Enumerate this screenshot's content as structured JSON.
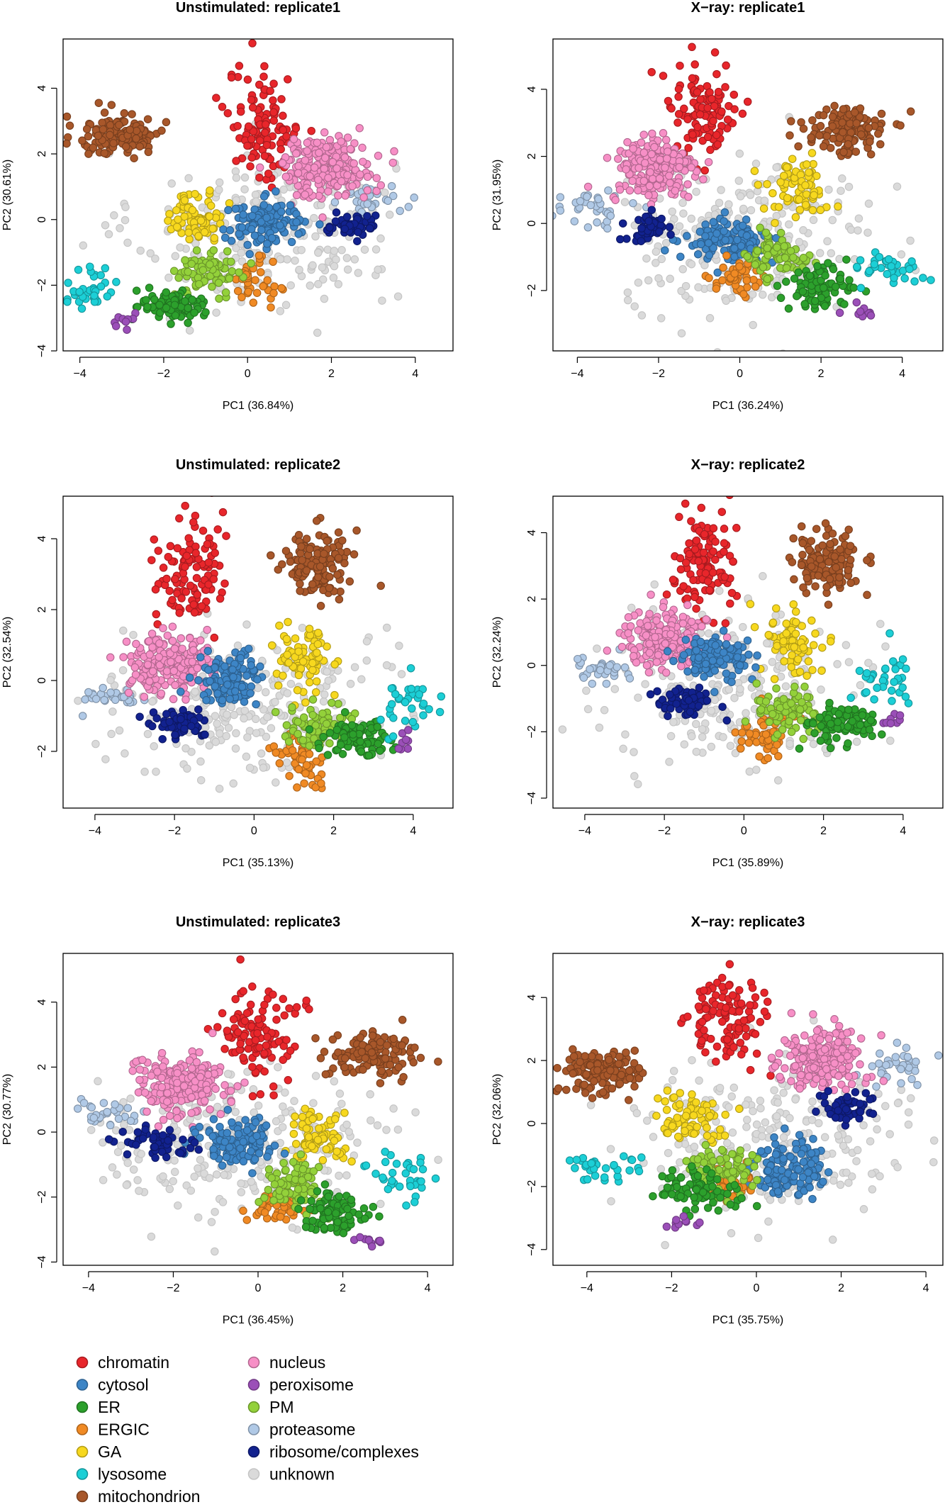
{
  "legend": {
    "placement": "bottom-left",
    "entries": [
      {
        "name": "chromatin",
        "color": "#e8262b"
      },
      {
        "name": "cytosol",
        "color": "#3d85c6"
      },
      {
        "name": "ER",
        "color": "#2ca02c"
      },
      {
        "name": "ERGIC",
        "color": "#f08a24"
      },
      {
        "name": "GA",
        "color": "#f7d81e"
      },
      {
        "name": "lysosome",
        "color": "#1ccfd6"
      },
      {
        "name": "mitochondrion",
        "color": "#a8572a"
      },
      {
        "name": "nucleus",
        "color": "#f78fc6"
      },
      {
        "name": "peroxisome",
        "color": "#9b4fb8"
      },
      {
        "name": "PM",
        "color": "#93d13a"
      },
      {
        "name": "proteasome",
        "color": "#b0c9e6"
      },
      {
        "name": "ribosome/complexes",
        "color": "#12228f"
      },
      {
        "name": "unknown",
        "color": "#dadada"
      }
    ]
  },
  "chart_data": [
    {
      "type": "scatter",
      "title": "Unstimulated: replicate1",
      "xlabel": "PC1 (36.84%)",
      "ylabel": "PC2 (30.61%)",
      "xlim": [
        -4.4,
        4.9
      ],
      "ylim": [
        -4.0,
        5.5
      ],
      "xticks": [
        -4,
        -2,
        0,
        2,
        4
      ],
      "yticks": [
        -4,
        -2,
        0,
        2,
        4
      ],
      "clusters": [
        {
          "class": "unknown",
          "cx": 0.4,
          "cy": -0.3,
          "sx": 1.8,
          "sy": 1.4,
          "n": 260
        },
        {
          "class": "proteasome",
          "cx": 3.0,
          "cy": 0.6,
          "sx": 0.45,
          "sy": 0.25,
          "n": 30
        },
        {
          "class": "mitochondrion",
          "cx": -3.0,
          "cy": 2.6,
          "sx": 0.6,
          "sy": 0.4,
          "n": 130
        },
        {
          "class": "chromatin",
          "cx": 0.4,
          "cy": 2.8,
          "sx": 0.5,
          "sy": 1.0,
          "n": 110
        },
        {
          "class": "nucleus",
          "cx": 1.9,
          "cy": 1.6,
          "sx": 0.65,
          "sy": 0.55,
          "n": 200
        },
        {
          "class": "GA",
          "cx": -1.2,
          "cy": 0.1,
          "sx": 0.4,
          "sy": 0.45,
          "n": 75
        },
        {
          "class": "cytosol",
          "cx": 0.5,
          "cy": -0.1,
          "sx": 0.55,
          "sy": 0.4,
          "n": 120
        },
        {
          "class": "ribosome/complexes",
          "cx": 2.5,
          "cy": -0.2,
          "sx": 0.35,
          "sy": 0.2,
          "n": 55
        },
        {
          "class": "ERGIC",
          "cx": 0.1,
          "cy": -1.9,
          "sx": 0.3,
          "sy": 0.4,
          "n": 40
        },
        {
          "class": "PM",
          "cx": -0.9,
          "cy": -1.6,
          "sx": 0.45,
          "sy": 0.35,
          "n": 75
        },
        {
          "class": "ER",
          "cx": -1.8,
          "cy": -2.6,
          "sx": 0.45,
          "sy": 0.3,
          "n": 90
        },
        {
          "class": "lysosome",
          "cx": -3.7,
          "cy": -2.1,
          "sx": 0.35,
          "sy": 0.3,
          "n": 35
        },
        {
          "class": "peroxisome",
          "cx": -2.9,
          "cy": -3.1,
          "sx": 0.2,
          "sy": 0.2,
          "n": 10
        }
      ]
    },
    {
      "type": "scatter",
      "title": "X−ray: replicate1",
      "xlabel": "PC1 (36.24%)",
      "ylabel": "PC2 (31.95%)",
      "xlim": [
        -4.6,
        5.0
      ],
      "ylim": [
        -3.8,
        5.5
      ],
      "xticks": [
        -4,
        -2,
        0,
        2,
        4
      ],
      "yticks": [
        -2,
        0,
        2,
        4
      ],
      "clusters": [
        {
          "class": "unknown",
          "cx": 0.2,
          "cy": -0.5,
          "sx": 1.8,
          "sy": 1.3,
          "n": 260
        },
        {
          "class": "proteasome",
          "cx": -3.6,
          "cy": 0.4,
          "sx": 0.5,
          "sy": 0.25,
          "n": 35
        },
        {
          "class": "mitochondrion",
          "cx": 2.6,
          "cy": 2.8,
          "sx": 0.6,
          "sy": 0.45,
          "n": 130
        },
        {
          "class": "chromatin",
          "cx": -0.9,
          "cy": 3.3,
          "sx": 0.55,
          "sy": 0.9,
          "n": 110
        },
        {
          "class": "nucleus",
          "cx": -2.1,
          "cy": 1.6,
          "sx": 0.6,
          "sy": 0.6,
          "n": 200
        },
        {
          "class": "GA",
          "cx": 1.4,
          "cy": 1.0,
          "sx": 0.45,
          "sy": 0.5,
          "n": 75
        },
        {
          "class": "cytosol",
          "cx": -0.3,
          "cy": -0.5,
          "sx": 0.6,
          "sy": 0.35,
          "n": 120
        },
        {
          "class": "ribosome/complexes",
          "cx": -2.3,
          "cy": -0.2,
          "sx": 0.3,
          "sy": 0.25,
          "n": 50
        },
        {
          "class": "ERGIC",
          "cx": 0.0,
          "cy": -1.6,
          "sx": 0.4,
          "sy": 0.35,
          "n": 45
        },
        {
          "class": "PM",
          "cx": 1.0,
          "cy": -1.0,
          "sx": 0.45,
          "sy": 0.4,
          "n": 75
        },
        {
          "class": "ER",
          "cx": 1.9,
          "cy": -1.9,
          "sx": 0.45,
          "sy": 0.35,
          "n": 90
        },
        {
          "class": "lysosome",
          "cx": 3.6,
          "cy": -1.3,
          "sx": 0.55,
          "sy": 0.3,
          "n": 35
        },
        {
          "class": "peroxisome",
          "cx": 3.0,
          "cy": -2.6,
          "sx": 0.3,
          "sy": 0.15,
          "n": 10
        }
      ]
    },
    {
      "type": "scatter",
      "title": "Unstimulated: replicate2",
      "xlabel": "PC1 (35.13%)",
      "ylabel": "PC2 (32.54%)",
      "xlim": [
        -4.8,
        5.0
      ],
      "ylim": [
        -3.6,
        5.2
      ],
      "xticks": [
        -4,
        -2,
        0,
        2,
        4
      ],
      "yticks": [
        -2,
        0,
        2,
        4
      ],
      "clusters": [
        {
          "class": "unknown",
          "cx": -0.2,
          "cy": -0.6,
          "sx": 1.9,
          "sy": 1.2,
          "n": 260
        },
        {
          "class": "proteasome",
          "cx": -3.6,
          "cy": -0.5,
          "sx": 0.5,
          "sy": 0.2,
          "n": 30
        },
        {
          "class": "mitochondrion",
          "cx": 1.6,
          "cy": 3.3,
          "sx": 0.5,
          "sy": 0.55,
          "n": 130
        },
        {
          "class": "chromatin",
          "cx": -1.6,
          "cy": 3.0,
          "sx": 0.5,
          "sy": 0.9,
          "n": 110
        },
        {
          "class": "nucleus",
          "cx": -2.2,
          "cy": 0.5,
          "sx": 0.6,
          "sy": 0.5,
          "n": 200
        },
        {
          "class": "GA",
          "cx": 1.3,
          "cy": 0.6,
          "sx": 0.4,
          "sy": 0.55,
          "n": 75
        },
        {
          "class": "cytosol",
          "cx": -0.6,
          "cy": 0.0,
          "sx": 0.5,
          "sy": 0.4,
          "n": 120
        },
        {
          "class": "ribosome/complexes",
          "cx": -1.8,
          "cy": -1.2,
          "sx": 0.45,
          "sy": 0.25,
          "n": 55
        },
        {
          "class": "ERGIC",
          "cx": 1.2,
          "cy": -2.2,
          "sx": 0.45,
          "sy": 0.4,
          "n": 50
        },
        {
          "class": "PM",
          "cx": 1.6,
          "cy": -1.3,
          "sx": 0.5,
          "sy": 0.35,
          "n": 80
        },
        {
          "class": "ER",
          "cx": 2.6,
          "cy": -1.6,
          "sx": 0.5,
          "sy": 0.3,
          "n": 90
        },
        {
          "class": "lysosome",
          "cx": 3.8,
          "cy": -0.5,
          "sx": 0.4,
          "sy": 0.5,
          "n": 35
        },
        {
          "class": "peroxisome",
          "cx": 3.8,
          "cy": -1.7,
          "sx": 0.15,
          "sy": 0.15,
          "n": 8
        }
      ]
    },
    {
      "type": "scatter",
      "title": "X−ray: replicate2",
      "xlabel": "PC1 (35.89%)",
      "ylabel": "PC2 (32.24%)",
      "xlim": [
        -4.8,
        5.0
      ],
      "ylim": [
        -4.3,
        5.1
      ],
      "xticks": [
        -4,
        -2,
        0,
        2,
        4
      ],
      "yticks": [
        -4,
        -2,
        0,
        2,
        4
      ],
      "clusters": [
        {
          "class": "unknown",
          "cx": -0.2,
          "cy": -0.6,
          "sx": 1.9,
          "sy": 1.3,
          "n": 260
        },
        {
          "class": "proteasome",
          "cx": -3.6,
          "cy": -0.1,
          "sx": 0.5,
          "sy": 0.25,
          "n": 35
        },
        {
          "class": "mitochondrion",
          "cx": 2.1,
          "cy": 3.1,
          "sx": 0.5,
          "sy": 0.55,
          "n": 130
        },
        {
          "class": "chromatin",
          "cx": -1.0,
          "cy": 3.1,
          "sx": 0.5,
          "sy": 0.9,
          "n": 110
        },
        {
          "class": "nucleus",
          "cx": -2.0,
          "cy": 0.8,
          "sx": 0.6,
          "sy": 0.5,
          "n": 200
        },
        {
          "class": "GA",
          "cx": 1.3,
          "cy": 0.7,
          "sx": 0.45,
          "sy": 0.55,
          "n": 75
        },
        {
          "class": "cytosol",
          "cx": -0.7,
          "cy": 0.2,
          "sx": 0.5,
          "sy": 0.4,
          "n": 120
        },
        {
          "class": "ribosome/complexes",
          "cx": -1.5,
          "cy": -1.1,
          "sx": 0.4,
          "sy": 0.25,
          "n": 55
        },
        {
          "class": "ERGIC",
          "cx": 0.5,
          "cy": -2.1,
          "sx": 0.45,
          "sy": 0.45,
          "n": 50
        },
        {
          "class": "PM",
          "cx": 1.2,
          "cy": -1.4,
          "sx": 0.55,
          "sy": 0.4,
          "n": 80
        },
        {
          "class": "ER",
          "cx": 2.5,
          "cy": -1.8,
          "sx": 0.5,
          "sy": 0.35,
          "n": 90
        },
        {
          "class": "lysosome",
          "cx": 3.6,
          "cy": -0.3,
          "sx": 0.45,
          "sy": 0.5,
          "n": 35
        },
        {
          "class": "peroxisome",
          "cx": 3.6,
          "cy": -1.7,
          "sx": 0.2,
          "sy": 0.15,
          "n": 8
        }
      ]
    },
    {
      "type": "scatter",
      "title": "Unstimulated: replicate3",
      "xlabel": "PC1 (36.45%)",
      "ylabel": "PC2 (30.77%)",
      "xlim": [
        -4.6,
        4.6
      ],
      "ylim": [
        -4.1,
        5.5
      ],
      "xticks": [
        -4,
        -2,
        0,
        2,
        4
      ],
      "yticks": [
        -4,
        -2,
        0,
        2,
        4
      ],
      "clusters": [
        {
          "class": "unknown",
          "cx": -0.5,
          "cy": -0.4,
          "sx": 1.9,
          "sy": 1.3,
          "n": 260
        },
        {
          "class": "proteasome",
          "cx": -3.5,
          "cy": 0.6,
          "sx": 0.5,
          "sy": 0.25,
          "n": 30
        },
        {
          "class": "mitochondrion",
          "cx": 2.7,
          "cy": 2.4,
          "sx": 0.65,
          "sy": 0.4,
          "n": 130
        },
        {
          "class": "chromatin",
          "cx": 0.0,
          "cy": 3.0,
          "sx": 0.55,
          "sy": 1.0,
          "n": 110
        },
        {
          "class": "nucleus",
          "cx": -1.9,
          "cy": 1.4,
          "sx": 0.65,
          "sy": 0.55,
          "n": 200
        },
        {
          "class": "GA",
          "cx": 1.4,
          "cy": -0.2,
          "sx": 0.45,
          "sy": 0.5,
          "n": 75
        },
        {
          "class": "cytosol",
          "cx": -0.5,
          "cy": -0.4,
          "sx": 0.55,
          "sy": 0.4,
          "n": 120
        },
        {
          "class": "ribosome/complexes",
          "cx": -2.4,
          "cy": -0.3,
          "sx": 0.45,
          "sy": 0.3,
          "n": 55
        },
        {
          "class": "ERGIC",
          "cx": 0.4,
          "cy": -2.3,
          "sx": 0.35,
          "sy": 0.35,
          "n": 45
        },
        {
          "class": "PM",
          "cx": 0.9,
          "cy": -1.6,
          "sx": 0.5,
          "sy": 0.45,
          "n": 80
        },
        {
          "class": "ER",
          "cx": 1.8,
          "cy": -2.5,
          "sx": 0.45,
          "sy": 0.35,
          "n": 90
        },
        {
          "class": "lysosome",
          "cx": 3.4,
          "cy": -1.4,
          "sx": 0.5,
          "sy": 0.4,
          "n": 35
        },
        {
          "class": "peroxisome",
          "cx": 2.7,
          "cy": -3.3,
          "sx": 0.2,
          "sy": 0.15,
          "n": 10
        }
      ]
    },
    {
      "type": "scatter",
      "title": "X−ray: replicate3",
      "xlabel": "PC1 (35.75%)",
      "ylabel": "PC2 (32.06%)",
      "xlim": [
        -4.8,
        4.4
      ],
      "ylim": [
        -4.5,
        5.4
      ],
      "xticks": [
        -4,
        -2,
        0,
        2,
        4
      ],
      "yticks": [
        -4,
        -2,
        0,
        2,
        4
      ],
      "clusters": [
        {
          "class": "unknown",
          "cx": 0.2,
          "cy": -0.6,
          "sx": 1.9,
          "sy": 1.4,
          "n": 260
        },
        {
          "class": "proteasome",
          "cx": 3.4,
          "cy": 1.8,
          "sx": 0.5,
          "sy": 0.3,
          "n": 35
        },
        {
          "class": "mitochondrion",
          "cx": -3.6,
          "cy": 1.6,
          "sx": 0.55,
          "sy": 0.4,
          "n": 130
        },
        {
          "class": "chromatin",
          "cx": -0.7,
          "cy": 3.4,
          "sx": 0.55,
          "sy": 0.8,
          "n": 110
        },
        {
          "class": "nucleus",
          "cx": 1.5,
          "cy": 2.1,
          "sx": 0.65,
          "sy": 0.55,
          "n": 200
        },
        {
          "class": "GA",
          "cx": -1.6,
          "cy": 0.2,
          "sx": 0.45,
          "sy": 0.45,
          "n": 75
        },
        {
          "class": "cytosol",
          "cx": 0.8,
          "cy": -1.4,
          "sx": 0.5,
          "sy": 0.5,
          "n": 120
        },
        {
          "class": "ribosome/complexes",
          "cx": 2.2,
          "cy": 0.5,
          "sx": 0.35,
          "sy": 0.3,
          "n": 55
        },
        {
          "class": "ERGIC",
          "cx": -0.7,
          "cy": -1.9,
          "sx": 0.35,
          "sy": 0.35,
          "n": 40
        },
        {
          "class": "PM",
          "cx": -0.8,
          "cy": -1.5,
          "sx": 0.5,
          "sy": 0.4,
          "n": 80
        },
        {
          "class": "ER",
          "cx": -1.4,
          "cy": -2.1,
          "sx": 0.5,
          "sy": 0.35,
          "n": 90
        },
        {
          "class": "lysosome",
          "cx": -3.6,
          "cy": -1.4,
          "sx": 0.5,
          "sy": 0.3,
          "n": 35
        },
        {
          "class": "peroxisome",
          "cx": -1.8,
          "cy": -3.1,
          "sx": 0.25,
          "sy": 0.15,
          "n": 10
        }
      ]
    }
  ]
}
